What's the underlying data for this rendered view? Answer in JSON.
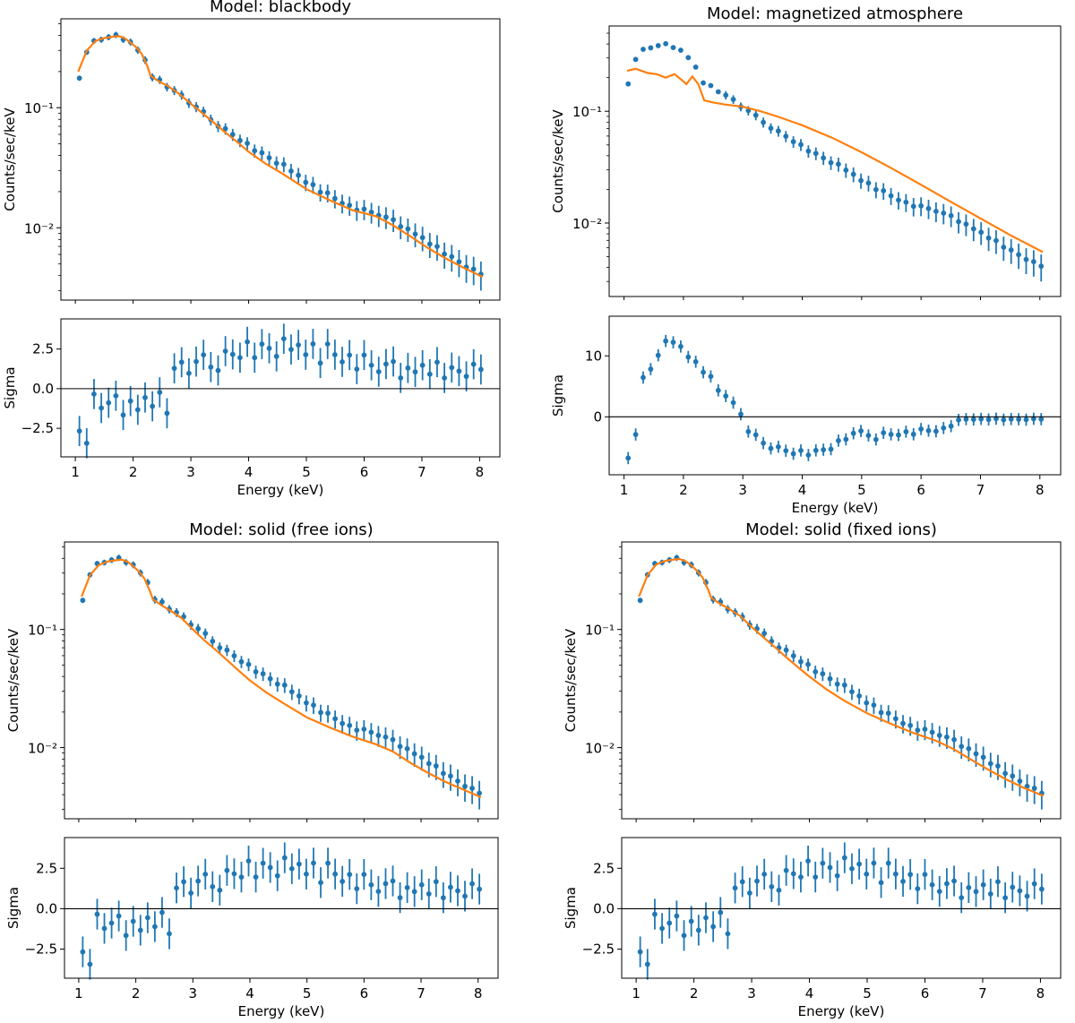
{
  "colors": {
    "data": "#1f77b4",
    "model": "#ff7f0e",
    "axis": "#000000",
    "zero_line": "#000000"
  },
  "chart_data": [
    {
      "type": "scatter",
      "title": "Model: blackbody",
      "xlabel": "Energy (keV)",
      "ylabel": "Counts/sec/keV",
      "yscale": "log",
      "xlim": [
        0.75,
        8.35
      ],
      "ylim": [
        0.0025,
        0.55
      ],
      "xticks": [
        "1",
        "2",
        "3",
        "4",
        "5",
        "6",
        "7",
        "8"
      ],
      "yticks": [
        "10⁻¹",
        "10⁻²"
      ],
      "model_x": [
        1.05,
        1.2,
        1.35,
        1.5,
        1.65,
        1.75,
        1.85,
        1.95,
        2.05,
        2.15,
        2.25,
        2.3,
        2.45,
        2.6,
        2.8,
        3.0,
        3.2,
        3.4,
        3.6,
        3.8,
        4.0,
        4.3,
        4.6,
        5.0,
        5.4,
        5.8,
        6.2,
        6.5,
        6.8,
        7.1,
        7.4,
        7.7,
        8.05
      ],
      "model_y": [
        0.2,
        0.3,
        0.36,
        0.38,
        0.39,
        0.395,
        0.38,
        0.35,
        0.32,
        0.28,
        0.22,
        0.185,
        0.165,
        0.152,
        0.13,
        0.108,
        0.09,
        0.075,
        0.062,
        0.052,
        0.043,
        0.034,
        0.028,
        0.021,
        0.017,
        0.014,
        0.0125,
        0.0105,
        0.0085,
        0.0068,
        0.0056,
        0.0047,
        0.0039
      ],
      "residual_panel": {
        "ylabel": "Sigma",
        "ylim": [
          -4.3,
          4.4
        ],
        "yticks": [
          "2.5",
          "0.0",
          "−2.5"
        ],
        "xticks": [
          "1",
          "2",
          "3",
          "4",
          "5",
          "6",
          "7",
          "8"
        ],
        "xlabel": "Energy (keV)"
      }
    },
    {
      "type": "scatter",
      "title": "Model: magnetized atmosphere",
      "xlabel": "Energy (keV)",
      "ylabel": "Counts/sec/keV",
      "yscale": "log",
      "xlim": [
        0.75,
        8.35
      ],
      "ylim": [
        0.0022,
        0.58
      ],
      "xticks": [
        "1",
        "2",
        "3",
        "4",
        "5",
        "6",
        "7",
        "8"
      ],
      "yticks": [
        "10⁻¹",
        "10⁻²"
      ],
      "model_x": [
        1.05,
        1.2,
        1.4,
        1.55,
        1.7,
        1.85,
        1.95,
        2.05,
        2.15,
        2.25,
        2.35,
        2.5,
        2.7,
        3.0,
        3.3,
        3.6,
        4.0,
        4.5,
        5.0,
        5.5,
        6.0,
        6.5,
        7.0,
        7.5,
        8.05
      ],
      "model_y": [
        0.23,
        0.24,
        0.22,
        0.215,
        0.2,
        0.215,
        0.195,
        0.175,
        0.205,
        0.175,
        0.125,
        0.12,
        0.115,
        0.11,
        0.1,
        0.089,
        0.075,
        0.058,
        0.043,
        0.031,
        0.022,
        0.0155,
        0.011,
        0.0078,
        0.0055
      ],
      "residual_panel": {
        "ylabel": "Sigma",
        "ylim": [
          -9.5,
          16.5
        ],
        "yticks": [
          "10",
          "0"
        ],
        "xticks": [
          "1",
          "2",
          "3",
          "4",
          "5",
          "6",
          "7",
          "8"
        ],
        "xlabel": "Energy (keV)"
      }
    },
    {
      "type": "scatter",
      "title": "Model: solid (free ions)",
      "xlabel": "Energy (keV)",
      "ylabel": "Counts/sec/keV",
      "yscale": "log",
      "xlim": [
        0.75,
        8.35
      ],
      "ylim": [
        0.0025,
        0.55
      ],
      "xticks": [
        "1",
        "2",
        "3",
        "4",
        "5",
        "6",
        "7",
        "8"
      ],
      "yticks": [
        "10⁻¹",
        "10⁻²"
      ],
      "model_x": [
        1.05,
        1.2,
        1.35,
        1.5,
        1.65,
        1.75,
        1.85,
        1.95,
        2.05,
        2.15,
        2.25,
        2.3,
        2.45,
        2.6,
        2.8,
        3.0,
        3.2,
        3.4,
        3.6,
        3.8,
        4.0,
        4.3,
        4.6,
        5.0,
        5.4,
        5.8,
        6.2,
        6.5,
        6.8,
        7.1,
        7.4,
        7.7,
        8.05
      ],
      "model_y": [
        0.19,
        0.29,
        0.35,
        0.375,
        0.385,
        0.39,
        0.375,
        0.345,
        0.31,
        0.27,
        0.21,
        0.18,
        0.16,
        0.145,
        0.125,
        0.1,
        0.081,
        0.067,
        0.055,
        0.045,
        0.037,
        0.029,
        0.0235,
        0.018,
        0.0148,
        0.0124,
        0.0107,
        0.0093,
        0.0075,
        0.0062,
        0.0052,
        0.0045,
        0.0038
      ],
      "residual_panel": {
        "ylabel": "Sigma",
        "ylim": [
          -4.3,
          4.4
        ],
        "yticks": [
          "2.5",
          "0.0",
          "−2.5"
        ],
        "xticks": [
          "1",
          "2",
          "3",
          "4",
          "5",
          "6",
          "7",
          "8"
        ],
        "xlabel": "Energy (keV)"
      }
    },
    {
      "type": "scatter",
      "title": "Model: solid (fixed ions)",
      "xlabel": "Energy (keV)",
      "ylabel": "Counts/sec/keV",
      "yscale": "log",
      "xlim": [
        0.75,
        8.35
      ],
      "ylim": [
        0.0025,
        0.55
      ],
      "xticks": [
        "1",
        "2",
        "3",
        "4",
        "5",
        "6",
        "7",
        "8"
      ],
      "yticks": [
        "10⁻¹",
        "10⁻²"
      ],
      "model_x": [
        1.05,
        1.2,
        1.35,
        1.5,
        1.65,
        1.75,
        1.85,
        1.95,
        2.05,
        2.15,
        2.25,
        2.3,
        2.45,
        2.6,
        2.8,
        3.0,
        3.2,
        3.4,
        3.6,
        3.8,
        4.0,
        4.3,
        4.6,
        5.0,
        5.4,
        5.8,
        6.2,
        6.5,
        6.8,
        7.1,
        7.4,
        7.7,
        8.05
      ],
      "model_y": [
        0.19,
        0.29,
        0.355,
        0.38,
        0.39,
        0.395,
        0.38,
        0.35,
        0.315,
        0.275,
        0.215,
        0.185,
        0.165,
        0.15,
        0.13,
        0.105,
        0.086,
        0.071,
        0.058,
        0.048,
        0.04,
        0.031,
        0.025,
        0.0195,
        0.016,
        0.0133,
        0.0114,
        0.0097,
        0.0079,
        0.0065,
        0.0054,
        0.0046,
        0.0039
      ],
      "residual_panel": {
        "ylabel": "Sigma",
        "ylim": [
          -4.3,
          4.4
        ],
        "yticks": [
          "2.5",
          "0.0",
          "−2.5"
        ],
        "xticks": [
          "1",
          "2",
          "3",
          "4",
          "5",
          "6",
          "7",
          "8"
        ],
        "xlabel": "Energy (keV)"
      }
    }
  ]
}
